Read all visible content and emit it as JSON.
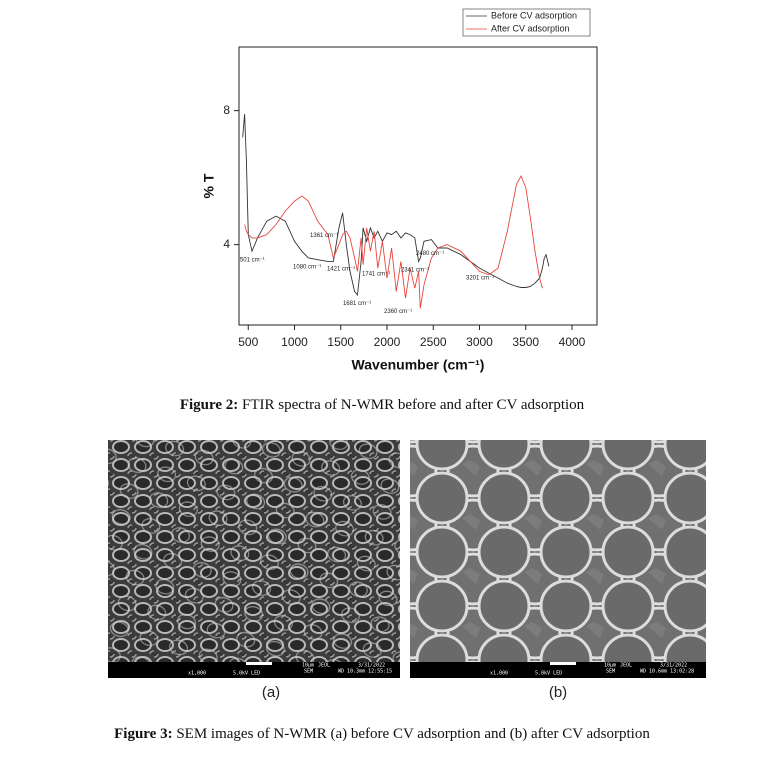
{
  "chart_data": {
    "type": "line",
    "y_label": "% T",
    "x_label": "Wavenumber (cm⁻¹)",
    "xlim": [
      400,
      4270
    ],
    "ylim": [
      1.6,
      9.9
    ],
    "xticks": [
      500,
      1000,
      1500,
      2000,
      2500,
      3000,
      3500,
      4000
    ],
    "yticks": [
      4,
      8
    ],
    "legend": "top-right",
    "x": [
      440,
      460,
      480,
      500,
      540,
      600,
      700,
      800,
      900,
      1000,
      1080,
      1150,
      1250,
      1361,
      1421,
      1480,
      1520,
      1560,
      1600,
      1650,
      1681,
      1720,
      1741,
      1780,
      1820,
      1860,
      1900,
      1950,
      2000,
      2050,
      2100,
      2150,
      2200,
      2250,
      2300,
      2341,
      2360,
      2400,
      2480,
      2550,
      2650,
      2800,
      3000,
      3100,
      3201,
      3300,
      3400,
      3450,
      3500,
      3550,
      3600,
      3650,
      3680,
      3700,
      3720,
      3750
    ],
    "series": [
      {
        "name": "Before CV adsorption",
        "color": "#333333",
        "values": [
          7.2,
          7.9,
          6.5,
          4.3,
          3.8,
          4.2,
          4.7,
          4.85,
          4.7,
          4.1,
          3.8,
          3.6,
          3.55,
          3.5,
          3.5,
          4.5,
          4.95,
          4.0,
          3.2,
          2.6,
          2.5,
          3.5,
          4.5,
          4.1,
          4.5,
          4.2,
          4.4,
          4.1,
          4.35,
          4.3,
          4.4,
          4.2,
          4.35,
          4.3,
          4.2,
          3.5,
          3.6,
          4.1,
          4.15,
          3.9,
          3.9,
          3.7,
          3.3,
          3.15,
          3.0,
          2.85,
          2.75,
          2.72,
          2.72,
          2.75,
          2.85,
          3.0,
          3.3,
          3.6,
          3.7,
          3.35
        ]
      },
      {
        "name": "After CV adsorption",
        "color": "#e8453c",
        "values": [
          null,
          4.6,
          4.4,
          4.3,
          4.2,
          4.2,
          4.3,
          4.6,
          5.0,
          5.3,
          5.45,
          5.3,
          4.7,
          4.3,
          3.6,
          4.0,
          4.3,
          4.4,
          4.2,
          3.6,
          3.2,
          4.2,
          3.4,
          4.5,
          3.8,
          4.4,
          3.3,
          4.1,
          3.0,
          3.9,
          2.6,
          3.5,
          2.4,
          3.3,
          2.7,
          3.2,
          2.1,
          2.8,
          3.6,
          3.9,
          4.0,
          3.8,
          3.2,
          3.1,
          3.3,
          4.4,
          5.8,
          6.05,
          5.7,
          4.8,
          3.8,
          3.0,
          2.7,
          null,
          null,
          null
        ]
      }
    ],
    "annotations": [
      {
        "text": "501 cm⁻¹",
        "x": 410,
        "y": 3.55
      },
      {
        "text": "1361 cm⁻¹",
        "x": 1168,
        "y": 4.27
      },
      {
        "text": "1080 cm⁻¹",
        "x": 984,
        "y": 3.34
      },
      {
        "text": "1421 cm⁻¹",
        "x": 1351,
        "y": 3.28
      },
      {
        "text": "1741 cm⁻¹",
        "x": 1730,
        "y": 3.13
      },
      {
        "text": "1681 cm⁻¹",
        "x": 1524,
        "y": 2.24
      },
      {
        "text": "2341 cm⁻¹",
        "x": 2151,
        "y": 3.25
      },
      {
        "text": "2480 cm⁻¹",
        "x": 2314,
        "y": 3.73
      },
      {
        "text": "2360 cm⁻¹",
        "x": 1968,
        "y": 2.0
      },
      {
        "text": "3201 cm⁻¹",
        "x": 2854,
        "y": 3.01
      }
    ]
  },
  "figure2_caption": {
    "label": "Figure 2:",
    "text": "FTIR spectra of N-WMR before and after CV adsorption"
  },
  "figure3": {
    "panels": [
      {
        "label": "(a)",
        "info": [
          "x1,000",
          "5.0kV  LED",
          "10μm",
          "JEOL",
          "3/31/2022",
          "SEM",
          "WD 10.3mm 12:55:15"
        ]
      },
      {
        "label": "(b)",
        "info": [
          "x1,000",
          "5.0kV  LED",
          "10μm",
          "JEOL",
          "3/31/2022",
          "SEM",
          "WD 10.6mm 13:02:28"
        ]
      }
    ],
    "caption": {
      "label": "Figure 3:",
      "text": "SEM images of N-WMR (a) before CV adsorption and (b) after CV adsorption"
    }
  }
}
